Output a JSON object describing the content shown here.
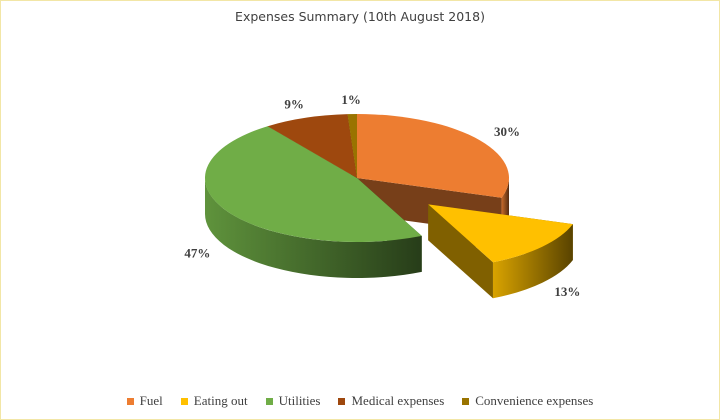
{
  "chart_data": {
    "type": "pie",
    "title": "Expenses Summary (10th August 2018)",
    "categories": [
      "Fuel",
      "Eating out",
      "Utilities",
      "Medical expenses",
      "Convenience expenses"
    ],
    "values": [
      30,
      13,
      47,
      9,
      1
    ],
    "value_labels": [
      "30%",
      "13%",
      "47%",
      "9%",
      "1%"
    ],
    "exploded": [
      "Eating out"
    ],
    "colors": [
      "#ed7d31",
      "#ffc000",
      "#70ad47",
      "#9e480e",
      "#997300"
    ],
    "legend_position": "bottom",
    "style": "3d"
  }
}
